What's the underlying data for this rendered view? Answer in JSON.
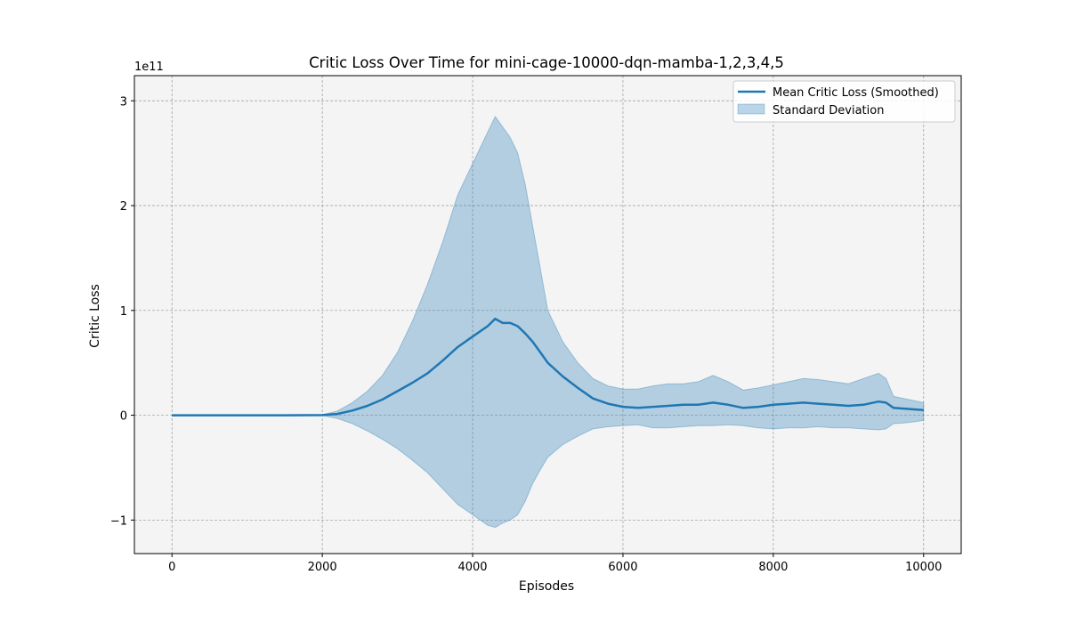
{
  "chart_data": {
    "type": "line",
    "title": "Critic Loss Over Time for mini-cage-10000-dqn-mamba-1,2,3,4,5",
    "xlabel": "Episodes",
    "ylabel": "Critic Loss",
    "y_scale_label": "1e11",
    "y_scale": 100000000000,
    "xlim": [
      -500,
      10500
    ],
    "ylim": [
      -132000000000.0,
      324000000000.0
    ],
    "xticks": [
      0,
      2000,
      4000,
      6000,
      8000,
      10000
    ],
    "xtick_labels": [
      "0",
      "2000",
      "4000",
      "6000",
      "8000",
      "10000"
    ],
    "yticks": [
      -100000000000.0,
      0,
      100000000000.0,
      200000000000.0,
      300000000000.0
    ],
    "ytick_labels": [
      "−1",
      "0",
      "1",
      "2",
      "3"
    ],
    "grid": true,
    "legend_position": "upper right",
    "background_color": "#f4f4f4",
    "line_color": "#1f77b4",
    "band_color": "#1f77b4",
    "series": [
      {
        "name": "Mean Critic Loss (Smoothed)",
        "x": [
          0,
          500,
          1000,
          1500,
          2000,
          2200,
          2400,
          2600,
          2800,
          3000,
          3200,
          3400,
          3600,
          3800,
          4000,
          4200,
          4300,
          4400,
          4500,
          4600,
          4700,
          4800,
          4900,
          5000,
          5200,
          5400,
          5600,
          5800,
          6000,
          6200,
          6400,
          6600,
          6800,
          7000,
          7200,
          7400,
          7600,
          7800,
          8000,
          8200,
          8400,
          8600,
          8800,
          9000,
          9200,
          9400,
          9500,
          9600,
          9800,
          10000
        ],
        "y": [
          0,
          0,
          0,
          0,
          100000000.0,
          1200000000.0,
          4500000000.0,
          9000000000.0,
          15000000000.0,
          23000000000.0,
          31000000000.0,
          40000000000.0,
          52000000000.0,
          65000000000.0,
          75000000000.0,
          85000000000.0,
          92000000000.0,
          88000000000.0,
          88000000000.0,
          85000000000.0,
          78000000000.0,
          70000000000.0,
          60000000000.0,
          50000000000.0,
          37000000000.0,
          26000000000.0,
          16000000000.0,
          11000000000.0,
          8000000000.0,
          7000000000.0,
          8000000000.0,
          9000000000.0,
          10000000000.0,
          10000000000.0,
          12000000000.0,
          10000000000.0,
          7000000000.0,
          8000000000.0,
          10000000000.0,
          11000000000.0,
          12000000000.0,
          11000000000.0,
          10000000000.0,
          9000000000.0,
          10000000000.0,
          13000000000.0,
          12000000000.0,
          7000000000.0,
          6000000000.0,
          5000000000.0
        ]
      },
      {
        "name": "Standard Deviation",
        "x": [
          0,
          500,
          1000,
          1500,
          2000,
          2200,
          2400,
          2600,
          2800,
          3000,
          3200,
          3400,
          3600,
          3800,
          4000,
          4200,
          4300,
          4400,
          4500,
          4600,
          4700,
          4800,
          4900,
          5000,
          5200,
          5400,
          5600,
          5800,
          6000,
          6200,
          6400,
          6600,
          6800,
          7000,
          7200,
          7400,
          7600,
          7800,
          8000,
          8200,
          8400,
          8600,
          8800,
          9000,
          9200,
          9400,
          9500,
          9600,
          9800,
          10000
        ],
        "upper": [
          0,
          0,
          0,
          0,
          500000000.0,
          4000000000.0,
          12000000000.0,
          23000000000.0,
          38000000000.0,
          60000000000.0,
          90000000000.0,
          125000000000.0,
          165000000000.0,
          210000000000.0,
          240000000000.0,
          270000000000.0,
          285000000000.0,
          275000000000.0,
          265000000000.0,
          250000000000.0,
          220000000000.0,
          180000000000.0,
          140000000000.0,
          100000000000.0,
          70000000000.0,
          50000000000.0,
          35000000000.0,
          28000000000.0,
          25000000000.0,
          25000000000.0,
          28000000000.0,
          30000000000.0,
          30000000000.0,
          32000000000.0,
          38000000000.0,
          32000000000.0,
          24000000000.0,
          26000000000.0,
          29000000000.0,
          32000000000.0,
          35000000000.0,
          34000000000.0,
          32000000000.0,
          30000000000.0,
          35000000000.0,
          40000000000.0,
          35000000000.0,
          18000000000.0,
          15000000000.0,
          12000000000.0
        ],
        "lower": [
          0,
          0,
          0,
          0,
          -300000000.0,
          -3000000000.0,
          -8000000000.0,
          -15000000000.0,
          -23000000000.0,
          -32000000000.0,
          -43000000000.0,
          -55000000000.0,
          -70000000000.0,
          -85000000000.0,
          -95000000000.0,
          -105000000000.0,
          -107000000000.0,
          -103000000000.0,
          -100000000000.0,
          -95000000000.0,
          -82000000000.0,
          -65000000000.0,
          -52000000000.0,
          -40000000000.0,
          -28000000000.0,
          -20000000000.0,
          -13000000000.0,
          -11000000000.0,
          -10000000000.0,
          -9000000000.0,
          -12000000000.0,
          -12000000000.0,
          -11000000000.0,
          -10000000000.0,
          -10000000000.0,
          -9000000000.0,
          -10000000000.0,
          -12000000000.0,
          -13000000000.0,
          -12000000000.0,
          -12000000000.0,
          -11000000000.0,
          -12000000000.0,
          -12000000000.0,
          -13000000000.0,
          -14000000000.0,
          -13000000000.0,
          -8000000000.0,
          -7000000000.0,
          -5000000000.0
        ]
      }
    ],
    "legend": [
      {
        "label": "Mean Critic Loss (Smoothed)",
        "kind": "line"
      },
      {
        "label": "Standard Deviation",
        "kind": "patch"
      }
    ]
  }
}
